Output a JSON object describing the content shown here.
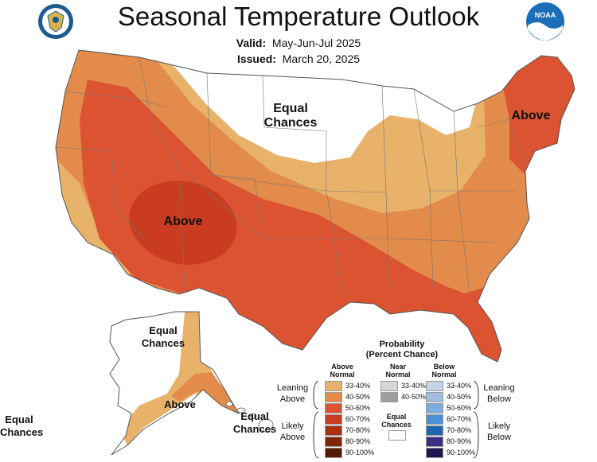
{
  "header": {
    "title": "Seasonal Temperature Outlook",
    "valid_label": "Valid:",
    "valid_value": "May-Jun-Jul 2025",
    "issued_label": "Issued:",
    "issued_value": "March 20, 2025"
  },
  "logos": {
    "left": "doc-seal-icon",
    "right": "noaa-logo-icon",
    "noaa_text": "NOAA"
  },
  "map_labels": {
    "equal_chances_north": [
      "Equal",
      "Chances"
    ],
    "above_west": "Above",
    "above_northeast": "Above",
    "alaska_equal": [
      "Equal",
      "Chances"
    ],
    "alaska_above": "Above",
    "hawaii_equal": [
      "Equal",
      "Chances"
    ],
    "far_left_equal": [
      "Equal",
      "Chances"
    ]
  },
  "colors": {
    "ec": "#ffffff",
    "above_33": "#e8b26b",
    "above_40": "#e38b4a",
    "above_50": "#dc5332",
    "above_60": "#c93c20",
    "above_70": "#a8310f",
    "above_80": "#7d2708",
    "above_90": "#551a05"
  },
  "legend": {
    "title": "Probability",
    "subtitle": "(Percent Chance)",
    "above_header": [
      "Above",
      "Normal"
    ],
    "near_header": [
      "Near",
      "Normal"
    ],
    "below_header": [
      "Below",
      "Normal"
    ],
    "leaning_above": [
      "Leaning",
      "Above"
    ],
    "likely_above": [
      "Likely",
      "Above"
    ],
    "leaning_below": [
      "Leaning",
      "Below"
    ],
    "likely_below": [
      "Likely",
      "Below"
    ],
    "equal_chances": [
      "Equal",
      "Chances"
    ],
    "above_swatches": [
      {
        "label": "33-40%",
        "color": "#e8b26b"
      },
      {
        "label": "40-50%",
        "color": "#e38b4a"
      },
      {
        "label": "50-60%",
        "color": "#dc5332"
      },
      {
        "label": "60-70%",
        "color": "#c93c20"
      },
      {
        "label": "70-80%",
        "color": "#a8310f"
      },
      {
        "label": "80-90%",
        "color": "#7d2708"
      },
      {
        "label": "90-100%",
        "color": "#551a05"
      }
    ],
    "near_swatches": [
      {
        "label": "33-40%",
        "color": "#d6d6d6"
      },
      {
        "label": "40-50%",
        "color": "#9e9e9e"
      }
    ],
    "below_swatches": [
      {
        "label": "33-40%",
        "color": "#c3d3e8"
      },
      {
        "label": "40-50%",
        "color": "#a3bde0"
      },
      {
        "label": "50-60%",
        "color": "#7aaee0"
      },
      {
        "label": "60-70%",
        "color": "#4a90d4"
      },
      {
        "label": "70-80%",
        "color": "#1f66b0"
      },
      {
        "label": "80-90%",
        "color": "#3b2d85"
      },
      {
        "label": "90-100%",
        "color": "#1f1550"
      }
    ]
  }
}
